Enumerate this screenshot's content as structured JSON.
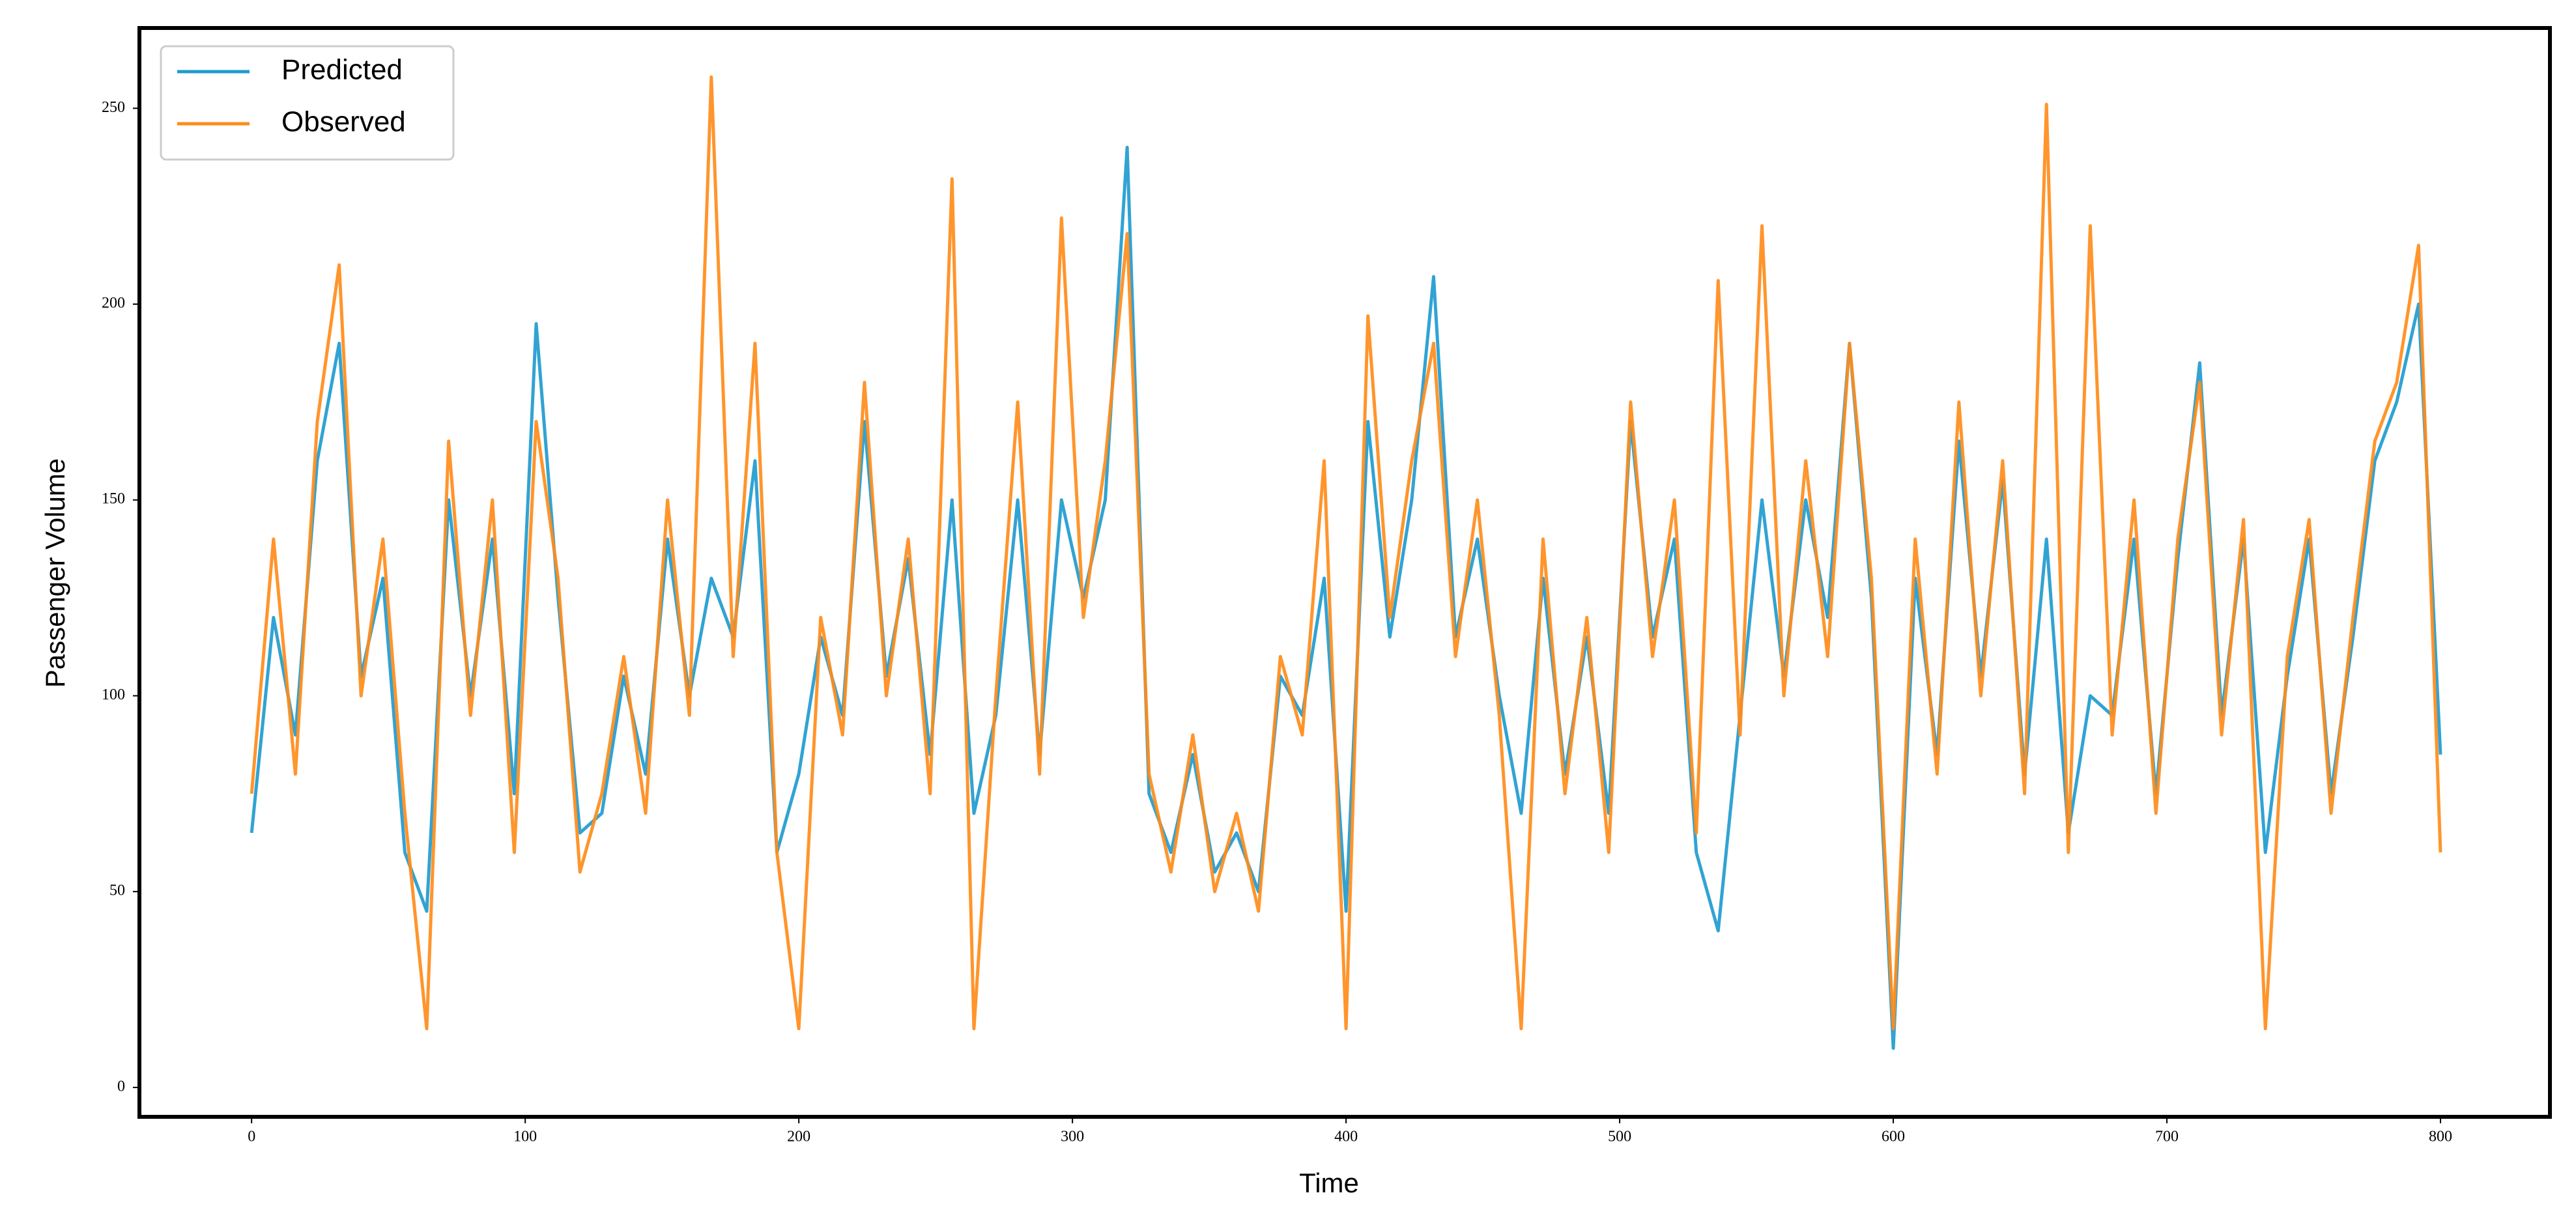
{
  "chart_data": {
    "type": "line",
    "xlabel": "Time",
    "ylabel": "Passenger Volume",
    "x": [
      0,
      8,
      16,
      24,
      32,
      40,
      48,
      56,
      64,
      72,
      80,
      88,
      96,
      104,
      112,
      120,
      128,
      136,
      144,
      152,
      160,
      168,
      176,
      184,
      192,
      200,
      208,
      216,
      224,
      232,
      240,
      248,
      256,
      264,
      272,
      280,
      288,
      296,
      304,
      312,
      320,
      328,
      336,
      344,
      352,
      360,
      368,
      376,
      384,
      392,
      400,
      408,
      416,
      424,
      432,
      440,
      448,
      456,
      464,
      472,
      480,
      488,
      496,
      504,
      512,
      520,
      528,
      536,
      544,
      552,
      560,
      568,
      576,
      584,
      592,
      600,
      608,
      616,
      624,
      632,
      640,
      648,
      656,
      664,
      672,
      680,
      688,
      696,
      704,
      712,
      720,
      728,
      736,
      744,
      752,
      760,
      768,
      776,
      784,
      792,
      800
    ],
    "series": [
      {
        "name": "Predicted",
        "color": "#1f9bcf",
        "values": [
          65,
          120,
          90,
          160,
          190,
          105,
          130,
          60,
          45,
          150,
          100,
          140,
          75,
          195,
          125,
          65,
          70,
          105,
          80,
          140,
          100,
          130,
          115,
          160,
          60,
          80,
          115,
          95,
          170,
          105,
          135,
          85,
          150,
          70,
          95,
          150,
          85,
          150,
          125,
          150,
          240,
          75,
          60,
          85,
          55,
          65,
          50,
          105,
          95,
          130,
          45,
          170,
          115,
          150,
          207,
          115,
          140,
          100,
          70,
          130,
          80,
          115,
          70,
          170,
          115,
          140,
          60,
          40,
          95,
          150,
          105,
          150,
          120,
          190,
          125,
          10,
          130,
          85,
          165,
          105,
          155,
          80,
          140,
          65,
          100,
          95,
          140,
          75,
          135,
          185,
          95,
          140,
          60,
          105,
          140,
          75,
          115,
          160,
          175,
          200,
          85
        ]
      },
      {
        "name": "Observed",
        "color": "#ff8c1a",
        "values": [
          75,
          140,
          80,
          170,
          210,
          100,
          140,
          70,
          15,
          165,
          95,
          150,
          60,
          170,
          130,
          55,
          75,
          110,
          70,
          150,
          95,
          258,
          110,
          190,
          60,
          15,
          120,
          90,
          180,
          100,
          140,
          75,
          232,
          15,
          100,
          175,
          80,
          222,
          120,
          160,
          218,
          80,
          55,
          90,
          50,
          70,
          45,
          110,
          90,
          160,
          15,
          197,
          120,
          160,
          190,
          110,
          150,
          95,
          15,
          140,
          75,
          120,
          60,
          175,
          110,
          150,
          65,
          206,
          90,
          220,
          100,
          160,
          110,
          190,
          130,
          15,
          140,
          80,
          175,
          100,
          160,
          75,
          251,
          60,
          220,
          90,
          150,
          70,
          140,
          180,
          90,
          145,
          15,
          110,
          145,
          70,
          120,
          165,
          180,
          215,
          60
        ]
      }
    ],
    "xlim": [
      -41,
      840
    ],
    "ylim": [
      -7.5,
      270.5
    ],
    "xticks": [
      0,
      100,
      200,
      300,
      400,
      500,
      600,
      700,
      800
    ],
    "yticks": [
      0,
      50,
      100,
      150,
      200,
      250
    ],
    "legend": "upper left"
  }
}
